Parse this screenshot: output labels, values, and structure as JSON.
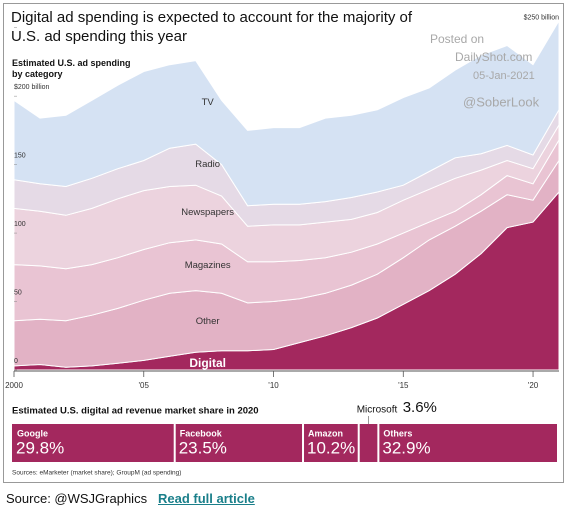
{
  "title": "Digital ad spending is expected to account for the majority of U.S. ad spending this year",
  "watermark": [
    "Posted on",
    "DailyShot.com",
    "05-Jan-2021",
    "@SoberLook"
  ],
  "sources": "Sources: eMarketer (market share); GroupM (ad spending)",
  "footer": {
    "source": "Source: @WSJGraphics",
    "link": "Read full article"
  },
  "chart_data": [
    {
      "type": "area",
      "stacked": true,
      "title": "Estimated U.S. ad spending by category",
      "x": [
        2000,
        2001,
        2002,
        2003,
        2004,
        2005,
        2006,
        2007,
        2008,
        2009,
        2010,
        2011,
        2012,
        2013,
        2014,
        2015,
        2016,
        2017,
        2018,
        2019,
        2020,
        2021
      ],
      "xlim": [
        2000,
        2021
      ],
      "xticks": [
        2000,
        {
          "value": 2005,
          "label": "'05"
        },
        {
          "value": 2010,
          "label": "'10"
        },
        {
          "value": 2015,
          "label": "'15"
        },
        {
          "value": 2020,
          "label": "'20"
        }
      ],
      "ylim": [
        0,
        260
      ],
      "yticks": [
        0,
        50,
        100,
        150,
        {
          "value": 200,
          "label": "$200 billion"
        },
        {
          "value": 250,
          "label": "$250 billion"
        }
      ],
      "grid": false,
      "series": [
        {
          "name": "Digital",
          "color": "#a3285e",
          "values": [
            3,
            4,
            2,
            3,
            5,
            7,
            10,
            13,
            14,
            14,
            15,
            20,
            25,
            31,
            38,
            48,
            58,
            70,
            85,
            104,
            108,
            130
          ]
        },
        {
          "name": "Other",
          "color": "#e2b2c5",
          "values": [
            33,
            33,
            34,
            37,
            40,
            44,
            46,
            45,
            42,
            35,
            35,
            32,
            31,
            31,
            32,
            34,
            37,
            35,
            31,
            24,
            16,
            23
          ]
        },
        {
          "name": "Magazines",
          "color": "#e9c4d3",
          "values": [
            41,
            39,
            38,
            37,
            37,
            37,
            37,
            37,
            36,
            30,
            29,
            28,
            26,
            24,
            22,
            18,
            13,
            11,
            12,
            14,
            12,
            15
          ]
        },
        {
          "name": "Newspapers",
          "color": "#ecd3de",
          "values": [
            41,
            40,
            39,
            41,
            43,
            43,
            41,
            40,
            35,
            26,
            27,
            26,
            26,
            24,
            23,
            24,
            24,
            24,
            18,
            11,
            11,
            11
          ]
        },
        {
          "name": "Radio",
          "color": "#e5dae6",
          "values": [
            21,
            20,
            21,
            22,
            22,
            22,
            28,
            30,
            23,
            15,
            15,
            15,
            15,
            16,
            15,
            11,
            13,
            15,
            12,
            11,
            10,
            11
          ]
        },
        {
          "name": "TV",
          "color": "#d5e2f3",
          "values": [
            58,
            48,
            52,
            57,
            61,
            65,
            61,
            61,
            47,
            55,
            56,
            56,
            61,
            60,
            60,
            64,
            61,
            64,
            72,
            73,
            66,
            65
          ]
        }
      ]
    },
    {
      "type": "stacked-bar",
      "title": "Estimated U.S. digital ad revenue market share in 2020",
      "categories": [
        "Google",
        "Facebook",
        "Amazon",
        "Microsoft",
        "Others"
      ],
      "values": [
        29.8,
        23.5,
        10.2,
        3.6,
        32.9
      ],
      "value_labels": [
        "29.8%",
        "23.5%",
        "10.2%",
        "3.6%",
        "32.9%"
      ],
      "xlim": [
        0,
        100
      ],
      "color": "#a3285e"
    }
  ]
}
